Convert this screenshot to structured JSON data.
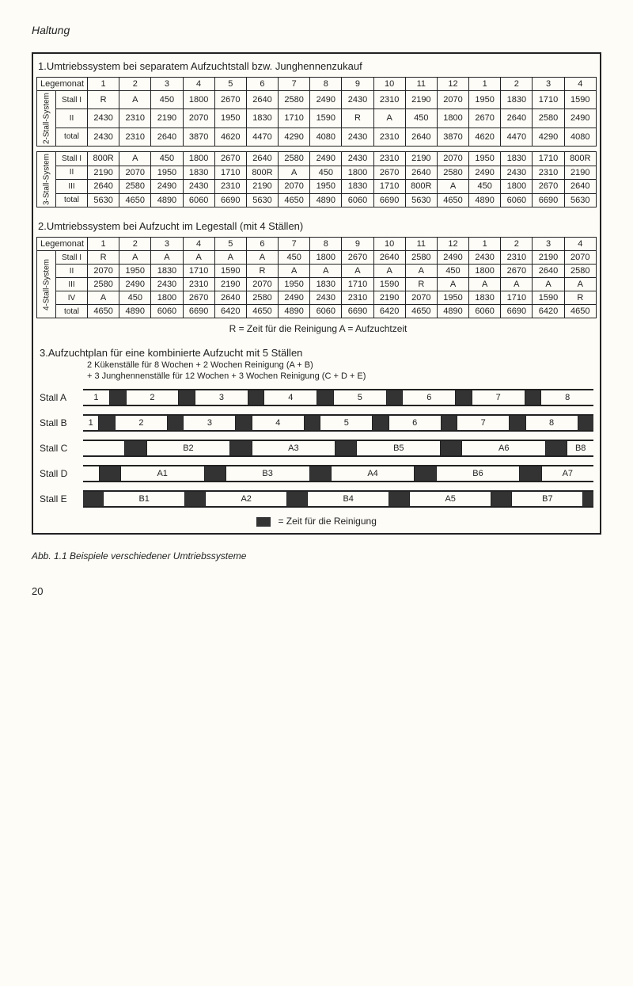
{
  "page": {
    "header": "Haltung",
    "caption": "Abb. 1.1 Beispiele verschiedener Umtriebssysteme",
    "pagenum": "20"
  },
  "section1": {
    "title": "1.Umtriebssystem bei separatem Aufzuchtstall bzw. Junghennenzukauf",
    "legemonat": "Legemonat",
    "months": [
      "1",
      "2",
      "3",
      "4",
      "5",
      "6",
      "7",
      "8",
      "9",
      "10",
      "11",
      "12",
      "1",
      "2",
      "3",
      "4"
    ],
    "sys2": {
      "label": "2-Stall-System",
      "rows": [
        {
          "name": "Stall I",
          "cells": [
            "R",
            "A",
            "450",
            "1800",
            "2670",
            "2640",
            "2580",
            "2490",
            "2430",
            "2310",
            "2190",
            "2070",
            "1950",
            "1830",
            "1710",
            "1590"
          ]
        },
        {
          "name": "II",
          "cells": [
            "2430",
            "2310",
            "2190",
            "2070",
            "1950",
            "1830",
            "1710",
            "1590",
            "R",
            "A",
            "450",
            "1800",
            "2670",
            "2640",
            "2580",
            "2490"
          ]
        },
        {
          "name": "total",
          "cells": [
            "2430",
            "2310",
            "2640",
            "3870",
            "4620",
            "4470",
            "4290",
            "4080",
            "2430",
            "2310",
            "2640",
            "3870",
            "4620",
            "4470",
            "4290",
            "4080"
          ]
        }
      ]
    },
    "sys3": {
      "label": "3-Stall-System",
      "rows": [
        {
          "name": "Stall I",
          "cells": [
            "800R",
            "A",
            "450",
            "1800",
            "2670",
            "2640",
            "2580",
            "2490",
            "2430",
            "2310",
            "2190",
            "2070",
            "1950",
            "1830",
            "1710",
            "800R"
          ]
        },
        {
          "name": "II",
          "cells": [
            "2190",
            "2070",
            "1950",
            "1830",
            "1710",
            "800R",
            "A",
            "450",
            "1800",
            "2670",
            "2640",
            "2580",
            "2490",
            "2430",
            "2310",
            "2190"
          ]
        },
        {
          "name": "III",
          "cells": [
            "2640",
            "2580",
            "2490",
            "2430",
            "2310",
            "2190",
            "2070",
            "1950",
            "1830",
            "1710",
            "800R",
            "A",
            "450",
            "1800",
            "2670",
            "2640"
          ]
        },
        {
          "name": "total",
          "cells": [
            "5630",
            "4650",
            "4890",
            "6060",
            "6690",
            "5630",
            "4650",
            "4890",
            "6060",
            "6690",
            "5630",
            "4650",
            "4890",
            "6060",
            "6690",
            "5630"
          ]
        }
      ]
    }
  },
  "section2": {
    "title": "2.Umtriebssystem bei Aufzucht im Legestall (mit 4 Ställen)",
    "legemonat": "Legemonat",
    "months": [
      "1",
      "2",
      "3",
      "4",
      "5",
      "6",
      "7",
      "8",
      "9",
      "10",
      "11",
      "12",
      "1",
      "2",
      "3",
      "4"
    ],
    "sys4": {
      "label": "4-Stall-System",
      "rows": [
        {
          "name": "Stall I",
          "cells": [
            "R",
            "A",
            "A",
            "A",
            "A",
            "A",
            "450",
            "1800",
            "2670",
            "2640",
            "2580",
            "2490",
            "2430",
            "2310",
            "2190",
            "2070"
          ]
        },
        {
          "name": "II",
          "cells": [
            "2070",
            "1950",
            "1830",
            "1710",
            "1590",
            "R",
            "A",
            "A",
            "A",
            "A",
            "A",
            "450",
            "1800",
            "2670",
            "2640",
            "2580"
          ]
        },
        {
          "name": "III",
          "cells": [
            "2580",
            "2490",
            "2430",
            "2310",
            "2190",
            "2070",
            "1950",
            "1830",
            "1710",
            "1590",
            "R",
            "A",
            "A",
            "A",
            "A",
            "A"
          ]
        },
        {
          "name": "IV",
          "cells": [
            "A",
            "450",
            "1800",
            "2670",
            "2640",
            "2580",
            "2490",
            "2430",
            "2310",
            "2190",
            "2070",
            "1950",
            "1830",
            "1710",
            "1590",
            "R"
          ]
        },
        {
          "name": "total",
          "cells": [
            "4650",
            "4890",
            "6060",
            "6690",
            "6420",
            "4650",
            "4890",
            "6060",
            "6690",
            "6420",
            "4650",
            "4890",
            "6060",
            "6690",
            "6420",
            "4650"
          ]
        }
      ]
    },
    "legend": "R = Zeit für die Reinigung   A = Aufzuchtzeit"
  },
  "section3": {
    "title": "3.Aufzuchtplan für eine kombinierte Aufzucht mit 5 Ställen",
    "sub1": "2 Kükenställe für 8 Wochen + 2 Wochen Reinigung (A + B)",
    "sub2": "+ 3 Junghennenställe für 12 Wochen + 3 Wochen Reinigung (C + D + E)",
    "stalls": {
      "A": {
        "label": "Stall A",
        "segments": [
          {
            "t": "1",
            "dark": false,
            "w": 5
          },
          {
            "t": "",
            "dark": true,
            "w": 3
          },
          {
            "t": "2",
            "dark": false,
            "w": 10
          },
          {
            "t": "",
            "dark": true,
            "w": 3
          },
          {
            "t": "3",
            "dark": false,
            "w": 10
          },
          {
            "t": "",
            "dark": true,
            "w": 3
          },
          {
            "t": "4",
            "dark": false,
            "w": 10
          },
          {
            "t": "",
            "dark": true,
            "w": 3
          },
          {
            "t": "5",
            "dark": false,
            "w": 10
          },
          {
            "t": "",
            "dark": true,
            "w": 3
          },
          {
            "t": "6",
            "dark": false,
            "w": 10
          },
          {
            "t": "",
            "dark": true,
            "w": 3
          },
          {
            "t": "7",
            "dark": false,
            "w": 10
          },
          {
            "t": "",
            "dark": true,
            "w": 3
          },
          {
            "t": "8",
            "dark": false,
            "w": 10
          }
        ]
      },
      "B": {
        "label": "Stall B",
        "segments": [
          {
            "t": "1",
            "dark": false,
            "w": 3
          },
          {
            "t": "",
            "dark": true,
            "w": 3
          },
          {
            "t": "2",
            "dark": false,
            "w": 10
          },
          {
            "t": "",
            "dark": true,
            "w": 3
          },
          {
            "t": "3",
            "dark": false,
            "w": 10
          },
          {
            "t": "",
            "dark": true,
            "w": 3
          },
          {
            "t": "4",
            "dark": false,
            "w": 10
          },
          {
            "t": "",
            "dark": true,
            "w": 3
          },
          {
            "t": "5",
            "dark": false,
            "w": 10
          },
          {
            "t": "",
            "dark": true,
            "w": 3
          },
          {
            "t": "6",
            "dark": false,
            "w": 10
          },
          {
            "t": "",
            "dark": true,
            "w": 3
          },
          {
            "t": "7",
            "dark": false,
            "w": 10
          },
          {
            "t": "",
            "dark": true,
            "w": 3
          },
          {
            "t": "8",
            "dark": false,
            "w": 10
          },
          {
            "t": "",
            "dark": true,
            "w": 3
          }
        ]
      },
      "C": {
        "label": "Stall C",
        "segments": [
          {
            "t": "",
            "dark": false,
            "w": 8
          },
          {
            "t": "",
            "dark": true,
            "w": 4
          },
          {
            "t": "B2",
            "dark": false,
            "w": 16
          },
          {
            "t": "",
            "dark": true,
            "w": 4
          },
          {
            "t": "A3",
            "dark": false,
            "w": 16
          },
          {
            "t": "",
            "dark": true,
            "w": 4
          },
          {
            "t": "B5",
            "dark": false,
            "w": 16
          },
          {
            "t": "",
            "dark": true,
            "w": 4
          },
          {
            "t": "A6",
            "dark": false,
            "w": 16
          },
          {
            "t": "",
            "dark": true,
            "w": 4
          },
          {
            "t": "B8",
            "dark": false,
            "w": 5
          }
        ]
      },
      "D": {
        "label": "Stall D",
        "segments": [
          {
            "t": "",
            "dark": false,
            "w": 3
          },
          {
            "t": "",
            "dark": true,
            "w": 4
          },
          {
            "t": "A1",
            "dark": false,
            "w": 16
          },
          {
            "t": "",
            "dark": true,
            "w": 4
          },
          {
            "t": "B3",
            "dark": false,
            "w": 16
          },
          {
            "t": "",
            "dark": true,
            "w": 4
          },
          {
            "t": "A4",
            "dark": false,
            "w": 16
          },
          {
            "t": "",
            "dark": true,
            "w": 4
          },
          {
            "t": "B6",
            "dark": false,
            "w": 16
          },
          {
            "t": "",
            "dark": true,
            "w": 4
          },
          {
            "t": "A7",
            "dark": false,
            "w": 10
          }
        ]
      },
      "E": {
        "label": "Stall E",
        "segments": [
          {
            "t": "",
            "dark": true,
            "w": 4
          },
          {
            "t": "B1",
            "dark": false,
            "w": 16
          },
          {
            "t": "",
            "dark": true,
            "w": 4
          },
          {
            "t": "A2",
            "dark": false,
            "w": 16
          },
          {
            "t": "",
            "dark": true,
            "w": 4
          },
          {
            "t": "B4",
            "dark": false,
            "w": 16
          },
          {
            "t": "",
            "dark": true,
            "w": 4
          },
          {
            "t": "A5",
            "dark": false,
            "w": 16
          },
          {
            "t": "",
            "dark": true,
            "w": 4
          },
          {
            "t": "B7",
            "dark": false,
            "w": 14
          },
          {
            "t": "",
            "dark": true,
            "w": 2
          }
        ]
      }
    },
    "legend": "= Zeit für die Reinigung"
  }
}
